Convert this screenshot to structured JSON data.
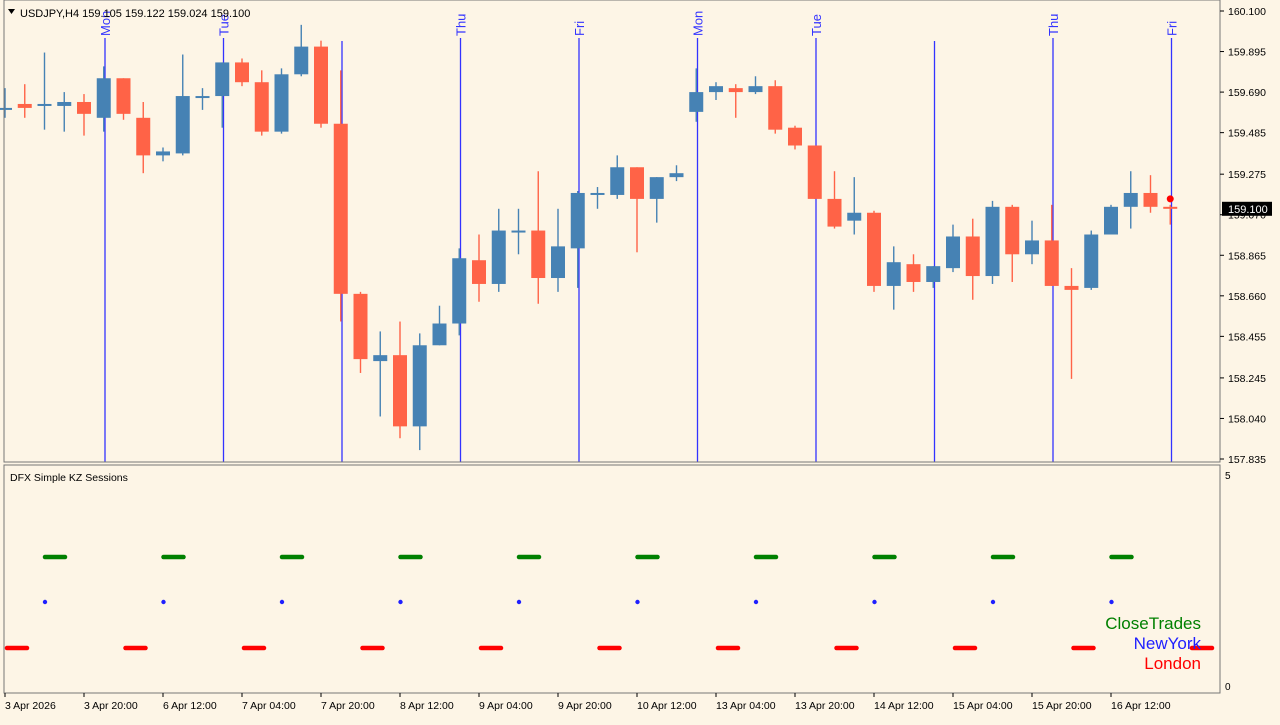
{
  "header": {
    "symbol_line": "USDJPY,H4  159.105 159.122 159.024 159.100",
    "indicator_title": "DFX Simple KZ Sessions"
  },
  "colors": {
    "background": "#fdf5e6",
    "bull": "#4682b4",
    "bear": "#ff6347",
    "separator": "#3333ff",
    "close_trades": "#008000",
    "new_york": "#1f1fff",
    "london": "#ff0000",
    "price_tag_bg": "#000000"
  },
  "price_axis": {
    "ticks": [
      "160.100",
      "159.895",
      "159.690",
      "159.485",
      "159.275",
      "159.070",
      "158.865",
      "158.660",
      "158.455",
      "158.245",
      "158.040",
      "157.835"
    ],
    "current_price": "159.100"
  },
  "time_axis": {
    "labels": [
      "3 Apr 2026",
      "3 Apr 20:00",
      "6 Apr 12:00",
      "7 Apr 04:00",
      "7 Apr 20:00",
      "8 Apr 12:00",
      "9 Apr 04:00",
      "9 Apr 20:00",
      "10 Apr 12:00",
      "13 Apr 04:00",
      "13 Apr 20:00",
      "14 Apr 12:00",
      "15 Apr 04:00",
      "15 Apr 20:00",
      "16 Apr 12:00"
    ]
  },
  "day_markers": [
    "Mon",
    "Tue",
    "",
    "Thu",
    "Fri",
    "Mon",
    "Tue",
    "",
    "Thu",
    "Fri"
  ],
  "indicator": {
    "scale_top": "5",
    "scale_bottom": "0",
    "legend": [
      "CloseTrades",
      "NewYork",
      "London"
    ]
  },
  "chart_data": {
    "type": "candlestick",
    "symbol": "USDJPY",
    "timeframe": "H4",
    "ylim": [
      157.835,
      160.1
    ],
    "candles": [
      {
        "o": 159.61,
        "h": 159.71,
        "l": 159.56,
        "c": 159.61
      },
      {
        "o": 159.63,
        "h": 159.73,
        "l": 159.56,
        "c": 159.61
      },
      {
        "o": 159.62,
        "h": 159.89,
        "l": 159.5,
        "c": 159.63
      },
      {
        "o": 159.62,
        "h": 159.69,
        "l": 159.49,
        "c": 159.64
      },
      {
        "o": 159.64,
        "h": 159.68,
        "l": 159.47,
        "c": 159.58
      },
      {
        "o": 159.56,
        "h": 159.82,
        "l": 159.49,
        "c": 159.76
      },
      {
        "o": 159.76,
        "h": 159.76,
        "l": 159.55,
        "c": 159.58
      },
      {
        "o": 159.56,
        "h": 159.64,
        "l": 159.28,
        "c": 159.37
      },
      {
        "o": 159.37,
        "h": 159.41,
        "l": 159.34,
        "c": 159.39
      },
      {
        "o": 159.38,
        "h": 159.88,
        "l": 159.37,
        "c": 159.67
      },
      {
        "o": 159.67,
        "h": 159.71,
        "l": 159.6,
        "c": 159.67
      },
      {
        "o": 159.67,
        "h": 159.84,
        "l": 159.51,
        "c": 159.84
      },
      {
        "o": 159.84,
        "h": 159.86,
        "l": 159.72,
        "c": 159.74
      },
      {
        "o": 159.74,
        "h": 159.8,
        "l": 159.47,
        "c": 159.49
      },
      {
        "o": 159.49,
        "h": 159.81,
        "l": 159.48,
        "c": 159.78
      },
      {
        "o": 159.78,
        "h": 160.03,
        "l": 159.77,
        "c": 159.92
      },
      {
        "o": 159.92,
        "h": 159.95,
        "l": 159.51,
        "c": 159.53
      },
      {
        "o": 159.53,
        "h": 159.8,
        "l": 158.53,
        "c": 158.67
      },
      {
        "o": 158.67,
        "h": 158.68,
        "l": 158.27,
        "c": 158.34
      },
      {
        "o": 158.33,
        "h": 158.48,
        "l": 158.05,
        "c": 158.36
      },
      {
        "o": 158.36,
        "h": 158.53,
        "l": 157.94,
        "c": 158.0
      },
      {
        "o": 158.0,
        "h": 158.47,
        "l": 157.88,
        "c": 158.41
      },
      {
        "o": 158.41,
        "h": 158.61,
        "l": 158.41,
        "c": 158.52
      },
      {
        "o": 158.52,
        "h": 158.9,
        "l": 158.46,
        "c": 158.85
      },
      {
        "o": 158.84,
        "h": 158.97,
        "l": 158.63,
        "c": 158.72
      },
      {
        "o": 158.72,
        "h": 159.1,
        "l": 158.68,
        "c": 158.99
      },
      {
        "o": 158.99,
        "h": 159.1,
        "l": 158.87,
        "c": 158.99
      },
      {
        "o": 158.99,
        "h": 159.29,
        "l": 158.62,
        "c": 158.75
      },
      {
        "o": 158.75,
        "h": 159.1,
        "l": 158.68,
        "c": 158.91
      },
      {
        "o": 158.9,
        "h": 159.19,
        "l": 158.7,
        "c": 159.18
      },
      {
        "o": 159.18,
        "h": 159.21,
        "l": 159.1,
        "c": 159.18
      },
      {
        "o": 159.17,
        "h": 159.37,
        "l": 159.15,
        "c": 159.31
      },
      {
        "o": 159.31,
        "h": 159.31,
        "l": 158.88,
        "c": 159.15
      },
      {
        "o": 159.15,
        "h": 159.26,
        "l": 159.03,
        "c": 159.26
      },
      {
        "o": 159.26,
        "h": 159.32,
        "l": 159.24,
        "c": 159.28
      },
      {
        "o": 159.59,
        "h": 159.81,
        "l": 159.54,
        "c": 159.69
      },
      {
        "o": 159.69,
        "h": 159.74,
        "l": 159.65,
        "c": 159.72
      },
      {
        "o": 159.71,
        "h": 159.73,
        "l": 159.56,
        "c": 159.69
      },
      {
        "o": 159.69,
        "h": 159.77,
        "l": 159.68,
        "c": 159.72
      },
      {
        "o": 159.72,
        "h": 159.75,
        "l": 159.48,
        "c": 159.5
      },
      {
        "o": 159.51,
        "h": 159.52,
        "l": 159.4,
        "c": 159.42
      },
      {
        "o": 159.42,
        "h": 159.42,
        "l": 159.15,
        "c": 159.15
      },
      {
        "o": 159.15,
        "h": 159.29,
        "l": 159.0,
        "c": 159.01
      },
      {
        "o": 159.04,
        "h": 159.26,
        "l": 158.97,
        "c": 159.08
      },
      {
        "o": 159.08,
        "h": 159.09,
        "l": 158.68,
        "c": 158.71
      },
      {
        "o": 158.71,
        "h": 158.91,
        "l": 158.59,
        "c": 158.83
      },
      {
        "o": 158.82,
        "h": 158.87,
        "l": 158.68,
        "c": 158.73
      },
      {
        "o": 158.73,
        "h": 158.81,
        "l": 158.7,
        "c": 158.81
      },
      {
        "o": 158.8,
        "h": 159.02,
        "l": 158.78,
        "c": 158.96
      },
      {
        "o": 158.96,
        "h": 159.05,
        "l": 158.64,
        "c": 158.76
      },
      {
        "o": 158.76,
        "h": 159.14,
        "l": 158.72,
        "c": 159.11
      },
      {
        "o": 159.11,
        "h": 159.12,
        "l": 158.73,
        "c": 158.87
      },
      {
        "o": 158.87,
        "h": 159.04,
        "l": 158.82,
        "c": 158.94
      },
      {
        "o": 158.94,
        "h": 159.12,
        "l": 158.71,
        "c": 158.71
      },
      {
        "o": 158.71,
        "h": 158.8,
        "l": 158.24,
        "c": 158.69
      },
      {
        "o": 158.7,
        "h": 158.99,
        "l": 158.69,
        "c": 158.97
      },
      {
        "o": 158.97,
        "h": 159.12,
        "l": 158.97,
        "c": 159.11
      },
      {
        "o": 159.11,
        "h": 159.29,
        "l": 159.0,
        "c": 159.18
      },
      {
        "o": 159.18,
        "h": 159.27,
        "l": 159.08,
        "c": 159.11
      },
      {
        "o": 159.11,
        "h": 159.12,
        "l": 159.02,
        "c": 159.1
      }
    ]
  }
}
